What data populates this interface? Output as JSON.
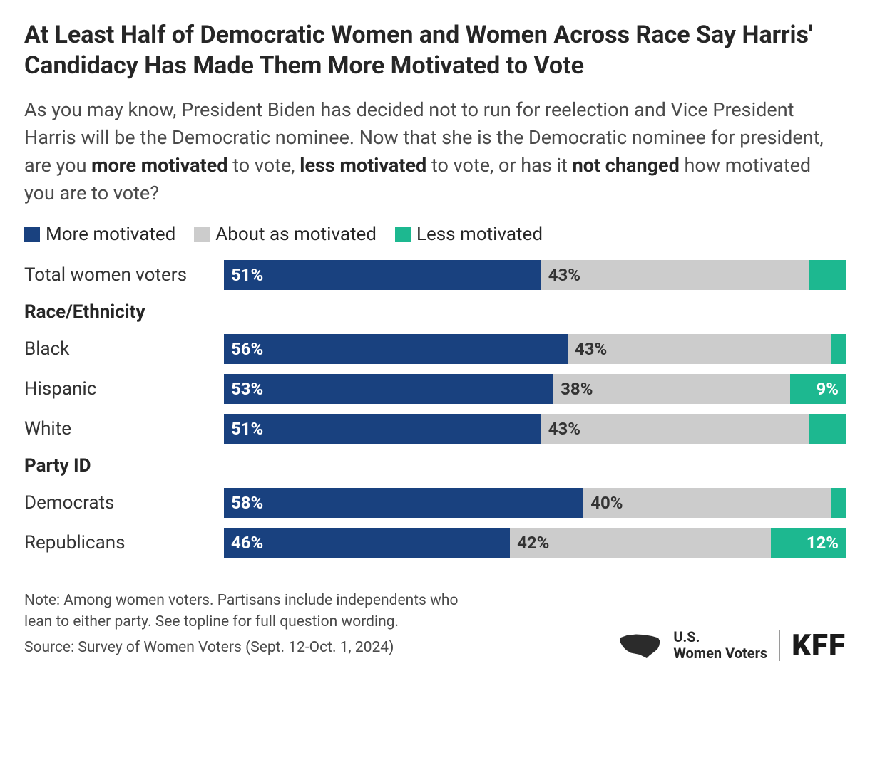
{
  "title": "At Least Half of Democratic Women and Women Across Race Say Harris' Candidacy Has Made Them More Motivated to Vote",
  "subtitle_html": "As you may know, President Biden has decided not to run for reelection and Vice President Harris will be the Democratic nominee. Now that she is the Democratic nominee for president, are you <b>more motivated</b> to vote, <b>less motivated</b> to vote, or has it <b>not changed</b> how motivated you are to vote?",
  "legend": {
    "more": {
      "label": "More motivated",
      "color": "#19417f"
    },
    "same": {
      "label": "About as motivated",
      "color": "#cccccc"
    },
    "less": {
      "label": "Less motivated",
      "color": "#1db890"
    }
  },
  "chart": {
    "type": "stacked-horizontal-bar",
    "label_threshold_pct": 8,
    "rows": [
      {
        "kind": "data",
        "label": "Total women voters",
        "more": 51,
        "same": 43,
        "less": 6
      },
      {
        "kind": "header",
        "label": "Race/Ethnicity"
      },
      {
        "kind": "data",
        "label": "Black",
        "more": 56,
        "same": 43,
        "less": 1
      },
      {
        "kind": "data",
        "label": "Hispanic",
        "more": 53,
        "same": 38,
        "less": 9
      },
      {
        "kind": "data",
        "label": "White",
        "more": 51,
        "same": 43,
        "less": 6
      },
      {
        "kind": "header",
        "label": "Party ID"
      },
      {
        "kind": "data",
        "label": "Democrats",
        "more": 58,
        "same": 40,
        "less": 2
      },
      {
        "kind": "data",
        "label": "Republicans",
        "more": 46,
        "same": 42,
        "less": 12
      }
    ]
  },
  "footer": {
    "note": "Note: Among women voters. Partisans include independents who lean to either party. See topline for full question wording.",
    "source": "Source: Survey of Women Voters (Sept. 12-Oct. 1, 2024)",
    "brand_line1": "U.S.",
    "brand_line2": "Women Voters",
    "logo": "KFF"
  }
}
